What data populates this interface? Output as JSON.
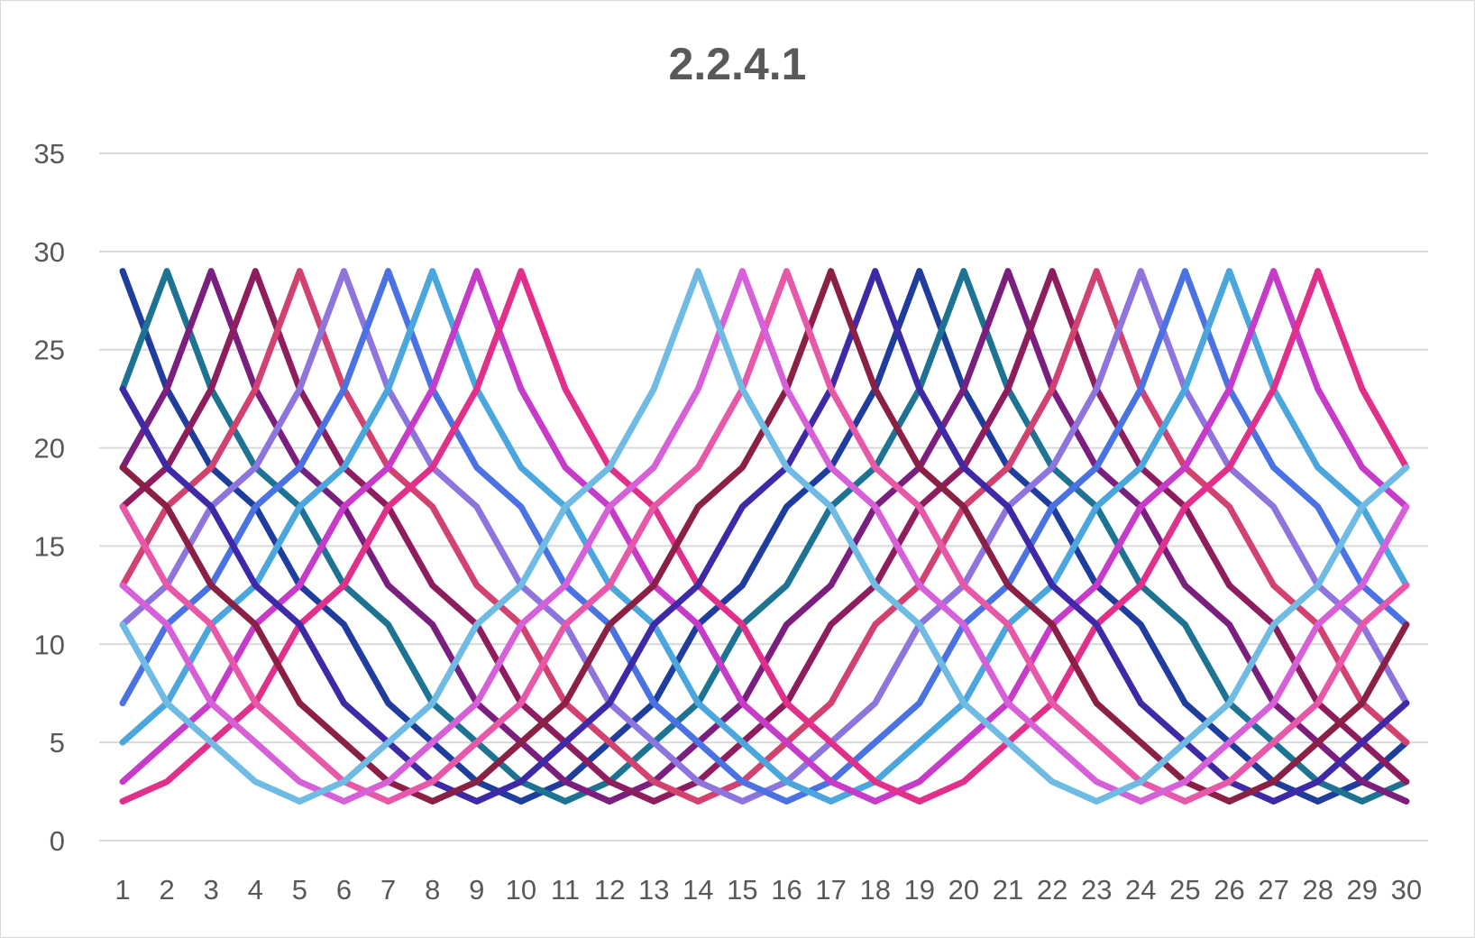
{
  "chart_data": {
    "type": "line",
    "title": "2.2.4.1",
    "xlabel": "",
    "ylabel": "",
    "ylim": [
      0,
      35
    ],
    "yticks": [
      0,
      5,
      10,
      15,
      20,
      25,
      30,
      35
    ],
    "categories": [
      "1",
      "2",
      "3",
      "4",
      "5",
      "6",
      "7",
      "8",
      "9",
      "10",
      "11",
      "12",
      "13",
      "14",
      "15",
      "16",
      "17",
      "18",
      "19",
      "20",
      "21",
      "22",
      "23",
      "24",
      "25",
      "26",
      "27",
      "28",
      "29",
      "30"
    ],
    "grid": true,
    "legend": "none",
    "series": [
      {
        "color": "#1F3D9C",
        "values": [
          29,
          23,
          19,
          17,
          13,
          11,
          7,
          5,
          3,
          2,
          3,
          5,
          7,
          11,
          13,
          17,
          19,
          23,
          29,
          23,
          19,
          17,
          13,
          11,
          7,
          5,
          3,
          2,
          3,
          5
        ]
      },
      {
        "color": "#1E7393",
        "values": [
          23,
          29,
          23,
          19,
          17,
          13,
          11,
          7,
          5,
          3,
          2,
          3,
          5,
          7,
          11,
          13,
          17,
          19,
          23,
          29,
          23,
          19,
          17,
          13,
          11,
          7,
          5,
          3,
          2,
          3
        ]
      },
      {
        "color": "#7A1F7E",
        "values": [
          19,
          23,
          29,
          23,
          19,
          17,
          13,
          11,
          7,
          5,
          3,
          2,
          3,
          5,
          7,
          11,
          13,
          17,
          19,
          23,
          29,
          23,
          19,
          17,
          13,
          11,
          7,
          5,
          3,
          2
        ]
      },
      {
        "color": "#8E1D5E",
        "values": [
          17,
          19,
          23,
          29,
          23,
          19,
          17,
          13,
          11,
          7,
          5,
          3,
          2,
          3,
          5,
          7,
          11,
          13,
          17,
          19,
          23,
          29,
          23,
          19,
          17,
          13,
          11,
          7,
          5,
          3
        ]
      },
      {
        "color": "#D2426E",
        "values": [
          13,
          17,
          19,
          23,
          29,
          23,
          19,
          17,
          13,
          11,
          7,
          5,
          3,
          2,
          3,
          5,
          7,
          11,
          13,
          17,
          19,
          23,
          29,
          23,
          19,
          17,
          13,
          11,
          7,
          5
        ]
      },
      {
        "color": "#8E74DD",
        "values": [
          11,
          13,
          17,
          19,
          23,
          29,
          23,
          19,
          17,
          13,
          11,
          7,
          5,
          3,
          2,
          3,
          5,
          7,
          11,
          13,
          17,
          19,
          23,
          29,
          23,
          19,
          17,
          13,
          11,
          7
        ]
      },
      {
        "color": "#4A72E3",
        "values": [
          7,
          11,
          13,
          17,
          19,
          23,
          29,
          23,
          19,
          17,
          13,
          11,
          7,
          5,
          3,
          2,
          3,
          5,
          7,
          11,
          13,
          17,
          19,
          23,
          29,
          23,
          19,
          17,
          13,
          11
        ]
      },
      {
        "color": "#4AA6DC",
        "values": [
          5,
          7,
          11,
          13,
          17,
          19,
          23,
          29,
          23,
          19,
          17,
          13,
          11,
          7,
          5,
          3,
          2,
          3,
          5,
          7,
          11,
          13,
          17,
          19,
          23,
          29,
          23,
          19,
          17,
          13
        ]
      },
      {
        "color": "#C73BC9",
        "values": [
          3,
          5,
          7,
          11,
          13,
          17,
          19,
          23,
          29,
          23,
          19,
          17,
          13,
          11,
          7,
          5,
          3,
          2,
          3,
          5,
          7,
          11,
          13,
          17,
          19,
          23,
          29,
          23,
          19,
          17
        ]
      },
      {
        "color": "#E0308A",
        "values": [
          2,
          3,
          5,
          7,
          11,
          13,
          17,
          19,
          23,
          29,
          23,
          19,
          17,
          13,
          11,
          7,
          5,
          3,
          2,
          3,
          5,
          7,
          11,
          13,
          17,
          19,
          23,
          29,
          23,
          19
        ]
      },
      {
        "color": "#3E2AA6",
        "values": [
          23,
          19,
          17,
          13,
          11,
          7,
          5,
          3,
          2,
          3,
          5,
          7,
          11,
          13,
          17,
          19,
          23,
          29,
          23,
          19,
          17,
          13,
          11,
          7,
          5,
          3,
          2,
          3,
          5,
          7
        ]
      },
      {
        "color": "#8A2045",
        "values": [
          19,
          17,
          13,
          11,
          7,
          5,
          3,
          2,
          3,
          5,
          7,
          11,
          13,
          17,
          19,
          23,
          29,
          23,
          19,
          17,
          13,
          11,
          7,
          5,
          3,
          2,
          3,
          5,
          7,
          11
        ]
      },
      {
        "color": "#E858A8",
        "values": [
          17,
          13,
          11,
          7,
          5,
          3,
          2,
          3,
          5,
          7,
          11,
          13,
          17,
          19,
          23,
          29,
          23,
          19,
          17,
          13,
          11,
          7,
          5,
          3,
          2,
          3,
          5,
          7,
          11,
          13
        ]
      },
      {
        "color": "#D660D8",
        "values": [
          13,
          11,
          7,
          5,
          3,
          2,
          3,
          5,
          7,
          11,
          13,
          17,
          19,
          23,
          29,
          23,
          19,
          17,
          13,
          11,
          7,
          5,
          3,
          2,
          3,
          5,
          7,
          11,
          13,
          17
        ]
      },
      {
        "color": "#6FBBE3",
        "values": [
          11,
          7,
          5,
          3,
          2,
          3,
          5,
          7,
          11,
          13,
          17,
          19,
          23,
          29,
          23,
          19,
          17,
          13,
          11,
          7,
          5,
          3,
          2,
          3,
          5,
          7,
          11,
          13,
          17,
          19
        ]
      }
    ]
  }
}
